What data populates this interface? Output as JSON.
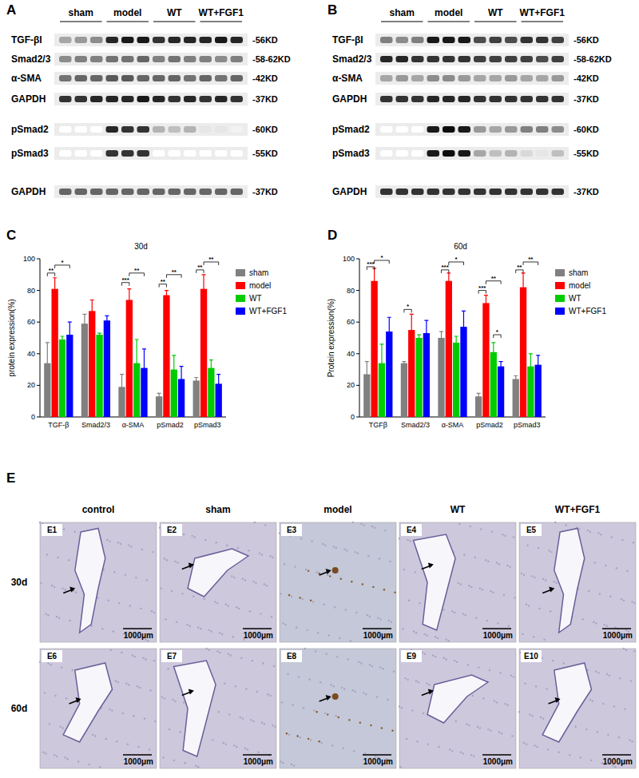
{
  "panel_labels": [
    "A",
    "B",
    "C",
    "D",
    "E"
  ],
  "blots": [
    {
      "groups": [
        "sham",
        "model",
        "WT",
        "WT+FGF1"
      ],
      "rows": [
        {
          "label": "TGF-βI",
          "size": "-56KD",
          "bands": [
            0.35,
            0.4,
            0.45,
            0.85,
            0.9,
            0.9,
            0.8,
            0.85,
            0.85,
            0.85,
            0.9,
            0.85
          ]
        },
        {
          "label": "Smad2/3",
          "size": "-58-62KD",
          "bands": [
            0.45,
            0.5,
            0.5,
            0.55,
            0.55,
            0.6,
            0.5,
            0.55,
            0.5,
            0.5,
            0.45,
            0.5
          ]
        },
        {
          "label": "α-SMA",
          "size": "-42KD",
          "bands": [
            0.55,
            0.6,
            0.6,
            0.65,
            0.65,
            0.6,
            0.6,
            0.6,
            0.55,
            0.6,
            0.55,
            0.6
          ]
        },
        {
          "label": "GAPDH",
          "size": "-37KD",
          "bands": [
            0.8,
            0.8,
            0.85,
            0.85,
            0.85,
            0.9,
            0.85,
            0.8,
            0.85,
            0.8,
            0.85,
            0.8
          ]
        },
        {
          "label": "pSmad2",
          "size": "-60KD",
          "bands": [
            0,
            0,
            0,
            0.85,
            0.8,
            0.8,
            0.3,
            0.25,
            0.3,
            0.1,
            0.1,
            0.05
          ]
        },
        {
          "label": "pSmad3",
          "size": "-55KD",
          "bands": [
            0,
            0,
            0,
            0.8,
            0.8,
            0.8,
            0,
            0,
            0,
            0,
            0,
            0
          ]
        },
        {
          "label": "GAPDH",
          "size": "-37KD",
          "bands": [
            0.6,
            0.6,
            0.6,
            0.6,
            0.6,
            0.6,
            0.6,
            0.6,
            0.6,
            0.6,
            0.6,
            0.6
          ]
        }
      ]
    },
    {
      "groups": [
        "sham",
        "model",
        "WT",
        "WT+FGF1"
      ],
      "rows": [
        {
          "label": "TGF-βI",
          "size": "-56KD",
          "bands": [
            0.5,
            0.45,
            0.5,
            0.9,
            0.9,
            0.9,
            0.7,
            0.75,
            0.7,
            0.8,
            0.8,
            0.75
          ]
        },
        {
          "label": "Smad2/3",
          "size": "-58-62KD",
          "bands": [
            0.85,
            0.85,
            0.8,
            0.8,
            0.8,
            0.8,
            0.75,
            0.75,
            0.75,
            0.75,
            0.7,
            0.75
          ]
        },
        {
          "label": "α-SMA",
          "size": "-42KD",
          "bands": [
            0.35,
            0.4,
            0.35,
            0.45,
            0.45,
            0.4,
            0.35,
            0.35,
            0.4,
            0.35,
            0.35,
            0.4
          ]
        },
        {
          "label": "GAPDH",
          "size": "-37KD",
          "bands": [
            0.8,
            0.8,
            0.8,
            0.85,
            0.85,
            0.85,
            0.8,
            0.8,
            0.8,
            0.8,
            0.8,
            0.8
          ]
        },
        {
          "label": "pSmad2",
          "size": "-60KD",
          "bands": [
            0,
            0,
            0,
            0.9,
            0.95,
            0.9,
            0.4,
            0.35,
            0.4,
            0.5,
            0.5,
            0.45
          ]
        },
        {
          "label": "pSmad3",
          "size": "-55KD",
          "bands": [
            0,
            0,
            0,
            0.9,
            0.95,
            0.9,
            0.35,
            0.25,
            0.3,
            0.15,
            0.1,
            0.25
          ]
        },
        {
          "label": "GAPDH",
          "size": "-37KD",
          "bands": [
            0.8,
            0.8,
            0.8,
            0.8,
            0.8,
            0.8,
            0.8,
            0.8,
            0.8,
            0.8,
            0.8,
            0.8
          ]
        }
      ]
    }
  ],
  "chart_data": [
    {
      "type": "bar",
      "title": "30d",
      "y_label": "protein expression(%)",
      "categories": [
        "TGF-β",
        "Smad2/3",
        "α-SMA",
        "pSmad2",
        "pSmad3"
      ],
      "series": [
        {
          "name": "sham",
          "color": "#808080",
          "values": [
            34,
            59,
            19,
            13,
            23
          ],
          "errors": [
            13,
            6,
            8,
            2,
            2
          ]
        },
        {
          "name": "model",
          "color": "#ff0000",
          "values": [
            81,
            67,
            74,
            77,
            81
          ],
          "errors": [
            7,
            7,
            7,
            3,
            9
          ]
        },
        {
          "name": "WT",
          "color": "#00cc00",
          "values": [
            49,
            52,
            34,
            30,
            31
          ],
          "errors": [
            2,
            1,
            15,
            9,
            5
          ]
        },
        {
          "name": "WT+FGF1",
          "color": "#0000ff",
          "values": [
            52,
            61,
            31,
            24,
            21
          ],
          "errors": [
            8,
            3,
            12,
            8,
            6
          ]
        }
      ],
      "ylim": [
        0,
        100
      ],
      "yticks": [
        0,
        20,
        40,
        60,
        80,
        100
      ],
      "grid": false,
      "legend": "right",
      "significance": [
        {
          "label": "**",
          "category": 0,
          "from": 0,
          "to": 1,
          "y": 91
        },
        {
          "label": "*",
          "category": 0,
          "from": 1,
          "to": 3,
          "y": 96
        },
        {
          "label": "***",
          "category": 2,
          "from": 0,
          "to": 1,
          "y": 85
        },
        {
          "label": "**",
          "category": 2,
          "from": 1,
          "to": 3,
          "y": 91
        },
        {
          "label": "**",
          "category": 3,
          "from": 0,
          "to": 1,
          "y": 84
        },
        {
          "label": "**",
          "category": 3,
          "from": 1,
          "to": 3,
          "y": 90
        },
        {
          "label": "**",
          "category": 4,
          "from": 0,
          "to": 1,
          "y": 93
        },
        {
          "label": "**",
          "category": 4,
          "from": 1,
          "to": 3,
          "y": 98
        }
      ]
    },
    {
      "type": "bar",
      "title": "60d",
      "y_label": "Protein expression(%)",
      "categories": [
        "TGFβ",
        "Smad2/3",
        "α-SMA",
        "pSmad2",
        "pSmad3"
      ],
      "series": [
        {
          "name": "sham",
          "color": "#808080",
          "values": [
            27,
            34,
            50,
            13,
            24
          ],
          "errors": [
            8,
            1,
            4,
            2,
            2
          ]
        },
        {
          "name": "model",
          "color": "#ff0000",
          "values": [
            86,
            55,
            86,
            72,
            82
          ],
          "errors": [
            8,
            10,
            5,
            5,
            9
          ]
        },
        {
          "name": "WT",
          "color": "#00cc00",
          "values": [
            34,
            50,
            47,
            41,
            32
          ],
          "errors": [
            12,
            2,
            4,
            6,
            8
          ]
        },
        {
          "name": "WT+FGF1",
          "color": "#0000ff",
          "values": [
            54,
            53,
            57,
            32,
            33
          ],
          "errors": [
            9,
            8,
            10,
            3,
            6
          ]
        }
      ],
      "ylim": [
        0,
        100
      ],
      "yticks": [
        0,
        20,
        40,
        60,
        80,
        100
      ],
      "grid": false,
      "legend": "right",
      "significance": [
        {
          "label": "***",
          "category": 0,
          "from": 0,
          "to": 1,
          "y": 95
        },
        {
          "label": "*",
          "category": 0,
          "from": 1,
          "to": 3,
          "y": 99
        },
        {
          "label": "*",
          "category": 1,
          "from": 0,
          "to": 1,
          "y": 68
        },
        {
          "label": "***",
          "category": 2,
          "from": 0,
          "to": 1,
          "y": 93
        },
        {
          "label": "*",
          "category": 2,
          "from": 1,
          "to": 3,
          "y": 98
        },
        {
          "label": "***",
          "category": 3,
          "from": 0,
          "to": 1,
          "y": 80
        },
        {
          "label": "**",
          "category": 3,
          "from": 1,
          "to": 3,
          "y": 86
        },
        {
          "label": "*",
          "category": 3,
          "from": 2,
          "to": 3,
          "y": 52
        },
        {
          "label": "**",
          "category": 4,
          "from": 0,
          "to": 1,
          "y": 93
        },
        {
          "label": "**",
          "category": 4,
          "from": 1,
          "to": 3,
          "y": 98
        }
      ]
    }
  ],
  "micrographs": {
    "columns": [
      "control",
      "sham",
      "model",
      "WT",
      "WT+FGF1"
    ],
    "rows": [
      "30d",
      "60d"
    ],
    "panels": [
      [
        "E1",
        "E2",
        "E3",
        "E4",
        "E5"
      ],
      [
        "E6",
        "E7",
        "E8",
        "E9",
        "E10"
      ]
    ],
    "scale_bar": "1000μm"
  }
}
